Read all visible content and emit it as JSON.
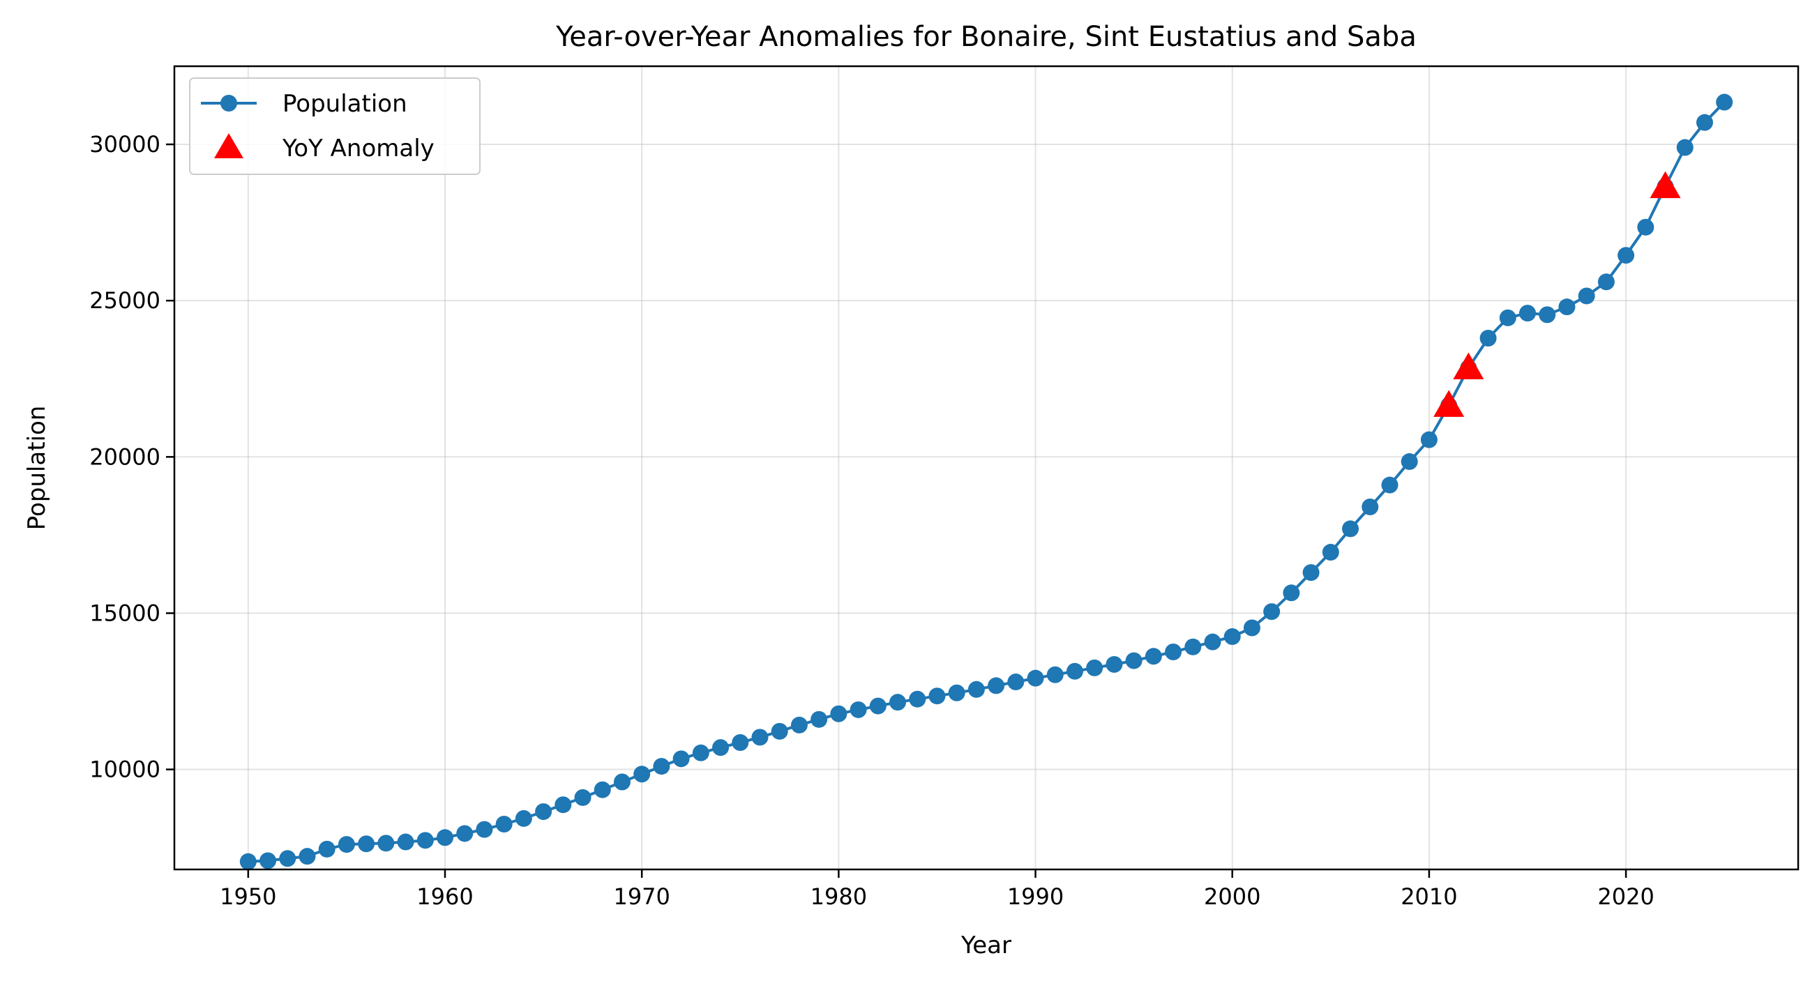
{
  "chart_data": {
    "type": "line",
    "title": "Year-over-Year Anomalies for Bonaire, Sint Eustatius and Saba",
    "xlabel": "Year",
    "ylabel": "Population",
    "xlim": [
      1946.25,
      2028.75
    ],
    "ylim": [
      6800,
      32500
    ],
    "xticks": [
      1950,
      1960,
      1970,
      1980,
      1990,
      2000,
      2010,
      2020
    ],
    "yticks": [
      10000,
      15000,
      20000,
      25000,
      30000
    ],
    "grid": true,
    "legend_position": "top-left",
    "series": [
      {
        "name": "Population",
        "color": "#1f77b4",
        "marker": "circle",
        "x": [
          1950,
          1951,
          1952,
          1953,
          1954,
          1955,
          1956,
          1957,
          1958,
          1959,
          1960,
          1961,
          1962,
          1963,
          1964,
          1965,
          1966,
          1967,
          1968,
          1969,
          1970,
          1971,
          1972,
          1973,
          1974,
          1975,
          1976,
          1977,
          1978,
          1979,
          1980,
          1981,
          1982,
          1983,
          1984,
          1985,
          1986,
          1987,
          1988,
          1989,
          1990,
          1991,
          1992,
          1993,
          1994,
          1995,
          1996,
          1997,
          1998,
          1999,
          2000,
          2001,
          2002,
          2003,
          2004,
          2005,
          2006,
          2007,
          2008,
          2009,
          2010,
          2011,
          2012,
          2013,
          2014,
          2015,
          2016,
          2017,
          2018,
          2019,
          2020,
          2021,
          2022,
          2023,
          2024,
          2025
        ],
        "y": [
          7050,
          7080,
          7150,
          7220,
          7450,
          7600,
          7620,
          7640,
          7680,
          7730,
          7820,
          7950,
          8080,
          8250,
          8430,
          8650,
          8870,
          9100,
          9350,
          9600,
          9850,
          10100,
          10340,
          10530,
          10700,
          10860,
          11030,
          11220,
          11420,
          11600,
          11780,
          11910,
          12030,
          12150,
          12250,
          12350,
          12450,
          12560,
          12680,
          12800,
          12920,
          13030,
          13140,
          13250,
          13360,
          13480,
          13620,
          13760,
          13920,
          14080,
          14250,
          14530,
          15050,
          15650,
          16300,
          16950,
          17700,
          18400,
          19100,
          19850,
          20550,
          21650,
          22850,
          23800,
          24450,
          24600,
          24550,
          24800,
          25150,
          25600,
          26450,
          27350,
          28650,
          29900,
          30700,
          31350
        ]
      },
      {
        "name": "YoY Anomaly",
        "color": "#ff0000",
        "marker": "triangle",
        "x": [
          2011,
          2012,
          2022
        ],
        "y": [
          21650,
          22850,
          28650
        ]
      }
    ]
  }
}
